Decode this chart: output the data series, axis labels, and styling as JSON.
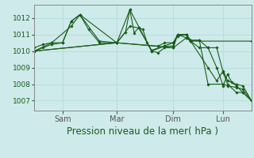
{
  "background_color": "#ceeaea",
  "grid_color": "#b0d8d8",
  "line_color": "#1a5c1a",
  "marker_color": "#1a5c1a",
  "xlabel": "Pression niveau de la mer( hPa )",
  "xlabel_fontsize": 8.5,
  "ylabel_fontsize": 6.5,
  "ylim": [
    1006.4,
    1012.8
  ],
  "yticks": [
    1007,
    1008,
    1009,
    1010,
    1011,
    1012
  ],
  "xtick_labels": [
    "Sam",
    "Mar",
    "Dim",
    "Lun"
  ],
  "xtick_positions": [
    0.13,
    0.38,
    0.64,
    0.87
  ],
  "series": [
    [
      0.0,
      1010.0,
      0.04,
      1010.2,
      0.08,
      1010.4,
      0.13,
      1010.5,
      0.17,
      1011.8,
      0.21,
      1012.2,
      0.25,
      1011.3,
      0.3,
      1010.5,
      0.38,
      1010.5,
      0.42,
      1011.15,
      0.44,
      1012.5,
      0.46,
      1011.1,
      0.48,
      1011.4,
      0.5,
      1011.3,
      0.52,
      1010.5,
      0.54,
      1010.0,
      0.57,
      1009.9,
      0.6,
      1010.2,
      0.64,
      1010.2,
      0.66,
      1011.0,
      0.7,
      1011.0,
      0.72,
      1010.65,
      0.76,
      1010.65,
      0.8,
      1010.2,
      0.84,
      1009.0,
      0.87,
      1007.9,
      0.89,
      1008.6,
      0.91,
      1008.1,
      0.93,
      1007.9,
      0.96,
      1007.5,
      1.0,
      1007.0
    ],
    [
      0.0,
      1010.2,
      0.04,
      1010.4,
      0.08,
      1010.5,
      0.13,
      1010.5,
      0.17,
      1011.8,
      0.21,
      1012.2,
      0.3,
      1010.6,
      0.38,
      1010.5,
      0.44,
      1012.5,
      0.54,
      1010.0,
      0.6,
      1010.3,
      0.64,
      1010.3,
      0.66,
      1011.0,
      0.7,
      1011.0,
      0.72,
      1010.65,
      0.76,
      1010.65,
      0.8,
      1008.0,
      0.87,
      1008.0,
      0.89,
      1007.9,
      0.93,
      1007.8,
      0.96,
      1007.7,
      1.0,
      1007.0
    ],
    [
      0.0,
      1010.0,
      0.08,
      1010.5,
      0.17,
      1011.5,
      0.21,
      1012.2,
      0.38,
      1010.5,
      0.44,
      1011.5,
      0.48,
      1011.4,
      0.54,
      1010.05,
      0.64,
      1010.5,
      0.66,
      1011.0,
      0.7,
      1010.8,
      0.72,
      1010.6,
      0.8,
      1009.0,
      0.84,
      1008.2,
      0.87,
      1008.8,
      0.89,
      1008.2,
      0.93,
      1008.0,
      0.96,
      1007.9,
      1.0,
      1007.0
    ],
    [
      0.0,
      1010.0,
      0.38,
      1010.5,
      0.57,
      1010.3,
      0.6,
      1010.5,
      0.64,
      1010.5,
      0.66,
      1010.9,
      0.7,
      1011.0,
      0.72,
      1010.6,
      0.76,
      1010.2,
      0.8,
      1010.2,
      0.84,
      1010.2,
      0.87,
      1008.7,
      0.89,
      1008.0,
      0.93,
      1007.5,
      0.96,
      1007.5,
      1.0,
      1007.0
    ],
    [
      0.0,
      1010.0,
      0.38,
      1010.5,
      0.64,
      1010.2,
      0.7,
      1010.8,
      0.72,
      1010.6,
      1.0,
      1010.6
    ]
  ]
}
